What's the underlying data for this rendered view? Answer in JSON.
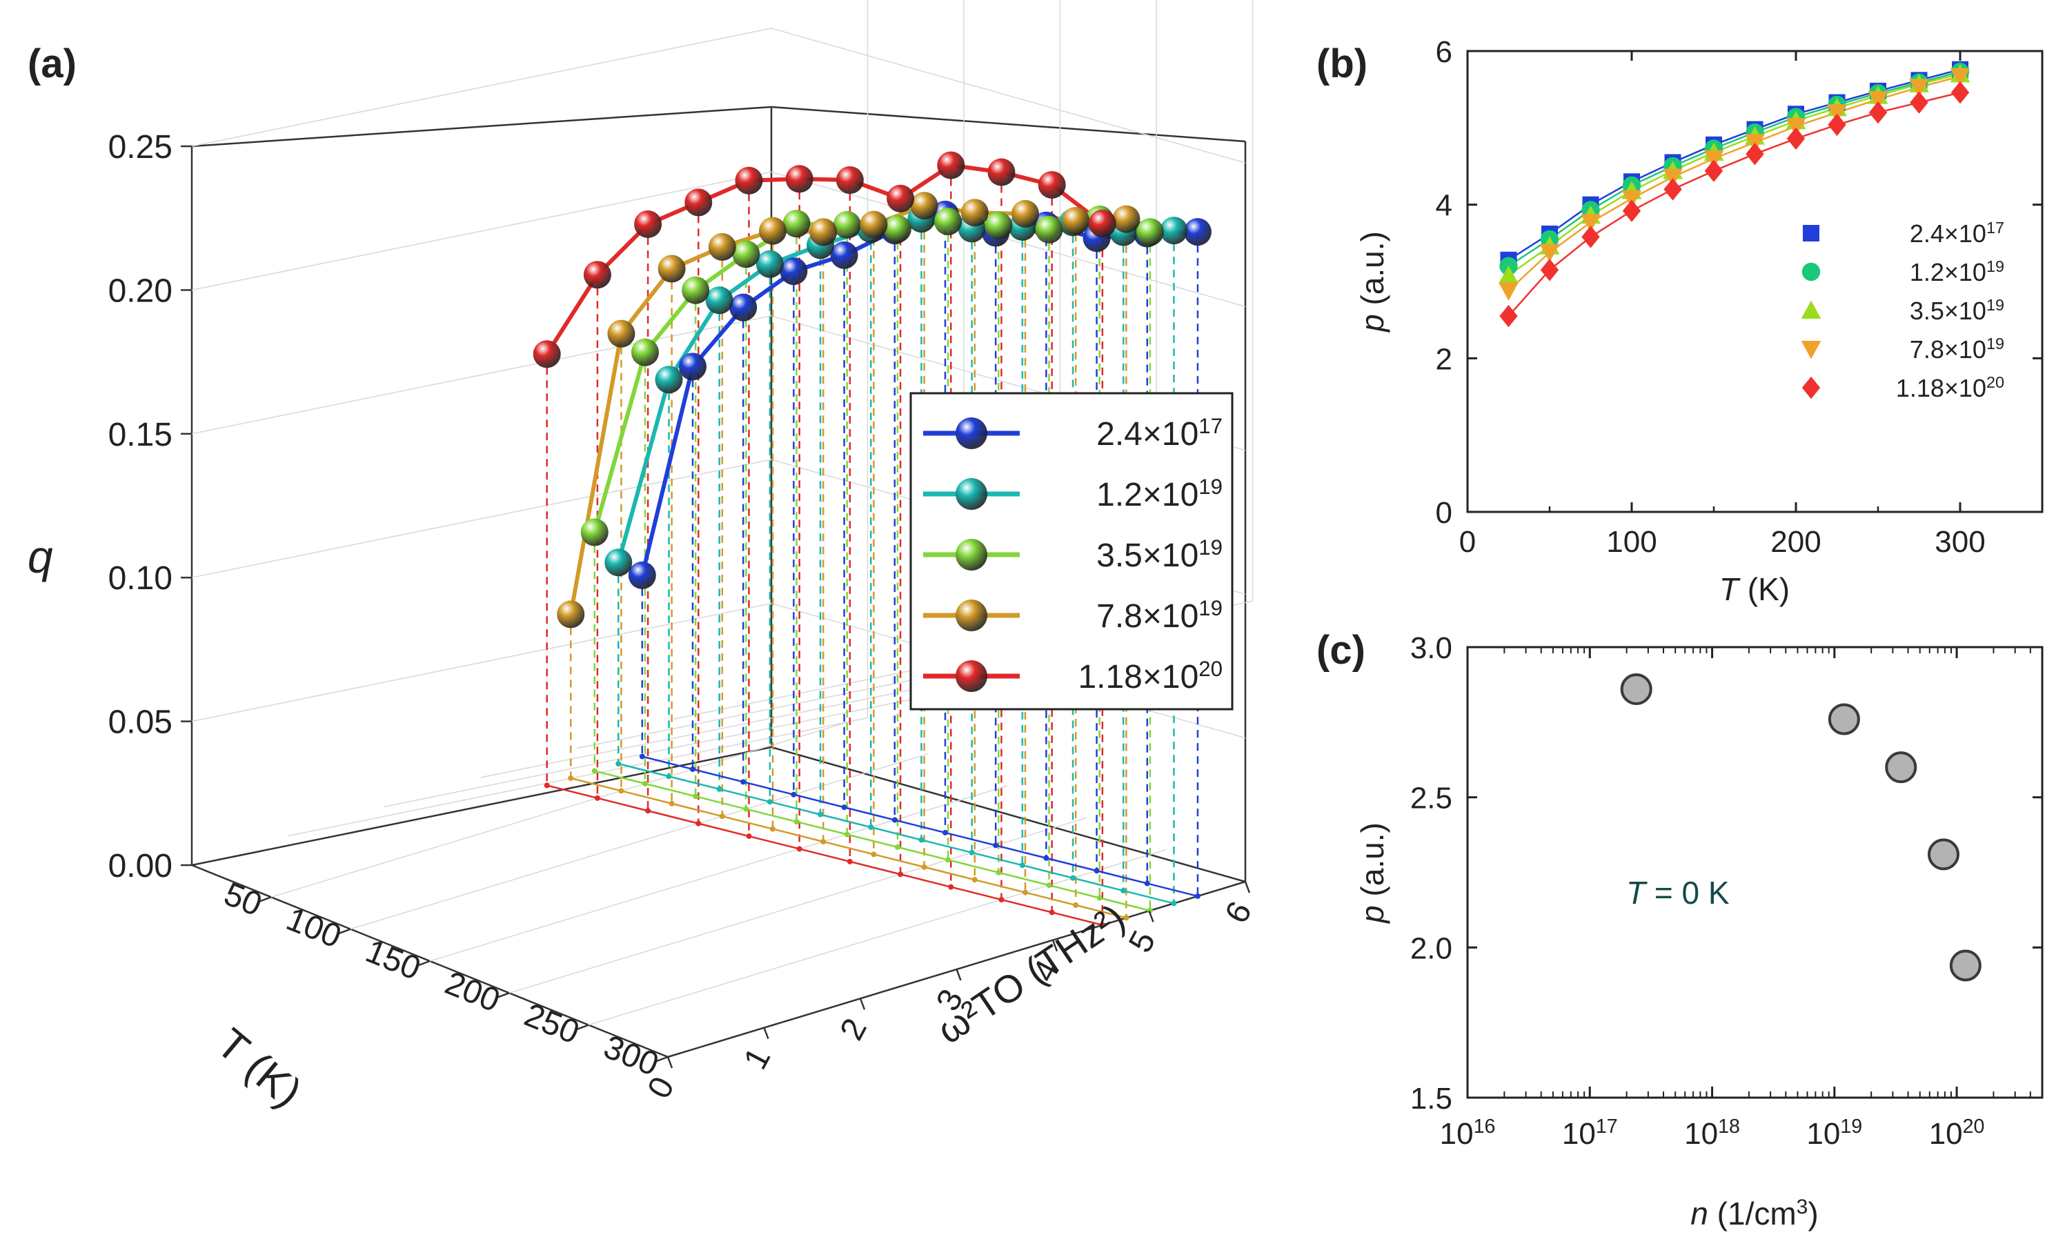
{
  "panels": {
    "a": "(a)",
    "b": "(b)",
    "c": "(c)"
  },
  "chart_data": [
    {
      "id": "a",
      "type": "line",
      "subtype": "3d",
      "title": "",
      "zlabel": "q",
      "xlabel": "T (K)",
      "ylabel": "ω²TO (THz²)",
      "z_ticks": [
        "0.00",
        "0.05",
        "0.10",
        "0.15",
        "0.20",
        "0.25"
      ],
      "x_ticks": [
        "50",
        "100",
        "150",
        "200",
        "250",
        "300"
      ],
      "y_ticks": [
        "0",
        "1",
        "2",
        "3",
        "4",
        "5",
        "6"
      ],
      "zlim": [
        0,
        0.25
      ],
      "legend_position": "right",
      "x": [
        25,
        50,
        75,
        100,
        125,
        150,
        175,
        200,
        225,
        250,
        275,
        300
      ],
      "series": [
        {
          "name": "2.4×10",
          "exp": "17",
          "color": "#1f3fd8",
          "values": [
            0.063,
            0.14,
            0.165,
            0.182,
            0.192,
            0.205,
            0.215,
            0.213,
            0.22,
            0.22,
            0.226,
            0.231
          ]
        },
        {
          "name": "1.2×10",
          "exp": "19",
          "color": "#1ab8b0",
          "values": [
            0.07,
            0.138,
            0.17,
            0.187,
            0.198,
            0.208,
            0.216,
            0.217,
            0.222,
            0.228,
            0.229,
            0.234
          ]
        },
        {
          "name": "3.5×10",
          "exp": "19",
          "color": "#82d63a",
          "values": [
            0.083,
            0.15,
            0.176,
            0.193,
            0.208,
            0.212,
            0.215,
            0.222,
            0.225,
            0.228,
            0.236,
            0.236
          ]
        },
        {
          "name": "7.8×10",
          "exp": "19",
          "color": "#d29a28",
          "values": [
            0.057,
            0.159,
            0.186,
            0.198,
            0.208,
            0.212,
            0.219,
            0.23,
            0.232,
            0.236,
            0.238,
            0.243
          ]
        },
        {
          "name": "1.18×10",
          "exp": "20",
          "color": "#e02a2a",
          "values": [
            0.15,
            0.182,
            0.204,
            0.216,
            0.228,
            0.233,
            0.237,
            0.235,
            0.251,
            0.253,
            0.253,
            0.244
          ]
        }
      ]
    },
    {
      "id": "b",
      "type": "scatter",
      "title": "",
      "xlabel": "T (K)",
      "ylabel": "p (a.u.)",
      "xlim": [
        0,
        350
      ],
      "ylim": [
        0,
        6
      ],
      "x_ticks": [
        "0",
        "100",
        "200",
        "300"
      ],
      "y_ticks": [
        "0",
        "2",
        "4",
        "6"
      ],
      "legend_position": "right",
      "x": [
        25,
        50,
        75,
        100,
        125,
        150,
        175,
        200,
        225,
        250,
        275,
        300
      ],
      "series": [
        {
          "name": "2.4×10",
          "exp": "17",
          "marker": "square",
          "color": "#1f3fd8",
          "values": [
            3.28,
            3.62,
            4.0,
            4.3,
            4.55,
            4.78,
            4.98,
            5.18,
            5.33,
            5.48,
            5.62,
            5.76
          ]
        },
        {
          "name": "1.2×10",
          "exp": "19",
          "marker": "circle",
          "color": "#1ac87a",
          "values": [
            3.2,
            3.55,
            3.93,
            4.25,
            4.5,
            4.73,
            4.94,
            5.14,
            5.3,
            5.45,
            5.59,
            5.73
          ]
        },
        {
          "name": "3.5×10",
          "exp": "19",
          "marker": "triangle-up",
          "color": "#9cdc1e",
          "values": [
            3.08,
            3.46,
            3.86,
            4.18,
            4.44,
            4.68,
            4.89,
            5.09,
            5.26,
            5.42,
            5.57,
            5.7
          ]
        },
        {
          "name": "7.8×10",
          "exp": "19",
          "marker": "triangle-down",
          "color": "#efa22a",
          "values": [
            2.88,
            3.38,
            3.77,
            4.08,
            4.36,
            4.6,
            4.81,
            5.02,
            5.2,
            5.37,
            5.53,
            5.67
          ]
        },
        {
          "name": "1.18×10",
          "exp": "20",
          "marker": "diamond",
          "color": "#f0322e",
          "values": [
            2.55,
            3.15,
            3.58,
            3.92,
            4.2,
            4.44,
            4.66,
            4.86,
            5.04,
            5.2,
            5.33,
            5.46
          ]
        }
      ]
    },
    {
      "id": "c",
      "type": "scatter",
      "title": "",
      "xlabel": "n (1/cm³)",
      "ylabel": "p (a.u.)",
      "xscale": "log",
      "xlim": [
        1e+16,
        5e+20
      ],
      "ylim": [
        1.5,
        3.0
      ],
      "x_ticks": [
        "10",
        "10",
        "10",
        "10",
        "10"
      ],
      "x_tick_exps": [
        "16",
        "17",
        "18",
        "19",
        "20"
      ],
      "y_ticks": [
        "1.5",
        "2.0",
        "2.5",
        "3.0"
      ],
      "annotation": "T = 0 K",
      "x": [
        2.4e+17,
        1.2e+19,
        3.5e+19,
        7.8e+19,
        1.18e+20
      ],
      "values": [
        2.86,
        2.76,
        2.6,
        2.31,
        1.94
      ]
    }
  ]
}
